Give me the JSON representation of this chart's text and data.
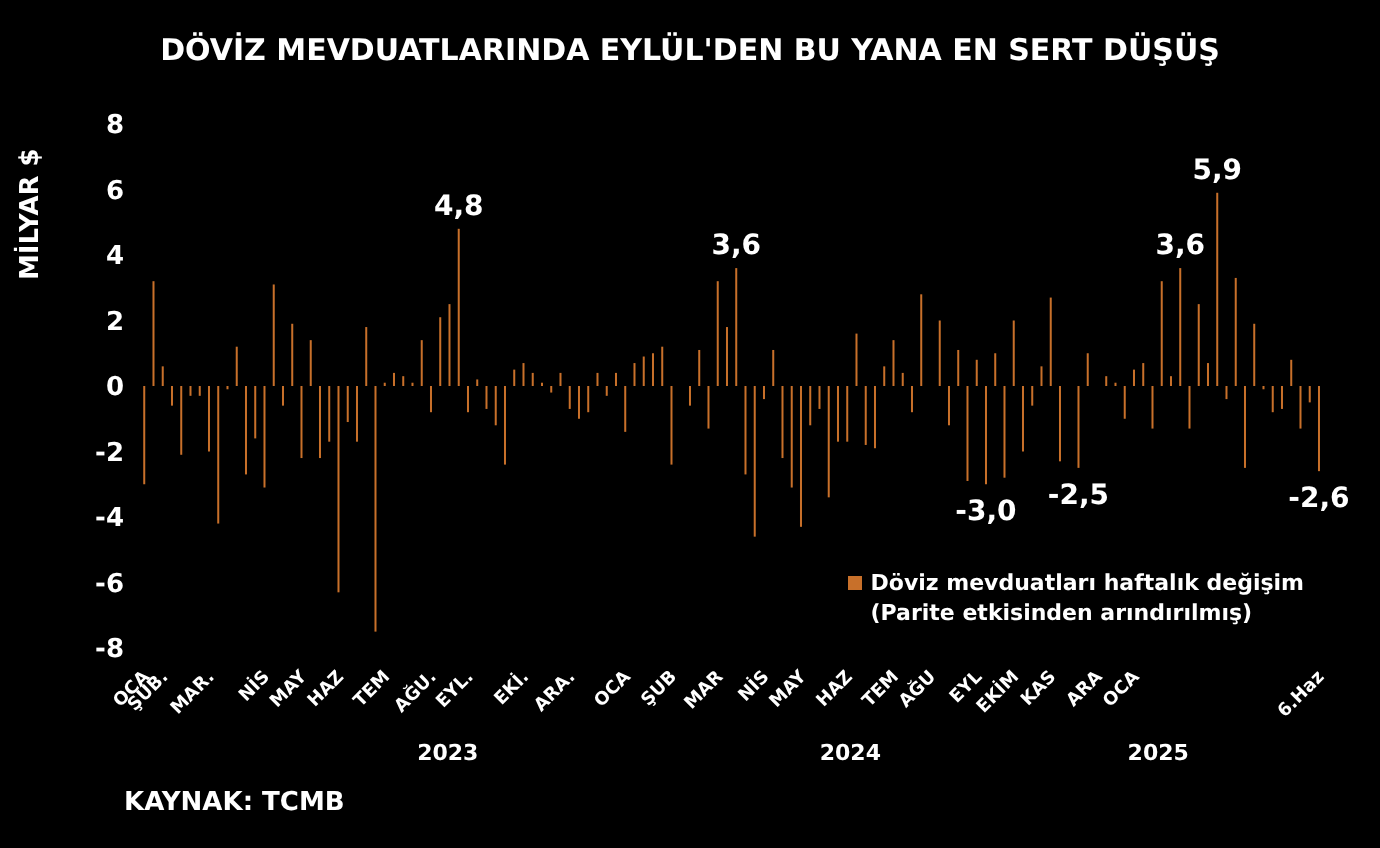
{
  "chart_data": {
    "type": "bar",
    "title": "DÖVİZ MEVDUATLARINDA EYLÜL'DEN BU YANA EN SERT DÜŞÜŞ",
    "ylabel": "MİLYAR $",
    "categories": [
      "OCA",
      null,
      "ŞUB.",
      null,
      null,
      null,
      null,
      "MAR.",
      null,
      null,
      null,
      null,
      null,
      "NİS",
      null,
      null,
      null,
      "MAY",
      null,
      null,
      null,
      "HAZ",
      null,
      null,
      null,
      null,
      "TEM",
      null,
      null,
      null,
      null,
      "AĞU.",
      null,
      null,
      null,
      "EYL.",
      null,
      null,
      null,
      null,
      null,
      "EKİ.",
      null,
      null,
      null,
      null,
      "ARA.",
      null,
      null,
      null,
      null,
      null,
      "OCA",
      null,
      null,
      null,
      null,
      "ŞUB",
      null,
      null,
      null,
      null,
      "MAR",
      null,
      null,
      null,
      null,
      "NİS",
      null,
      null,
      null,
      "MAY",
      null,
      null,
      null,
      null,
      "HAZ",
      null,
      null,
      null,
      null,
      "TEM",
      null,
      null,
      null,
      "AĞU",
      null,
      null,
      null,
      null,
      "EYL",
      null,
      null,
      null,
      "EKİM",
      null,
      null,
      null,
      "KAS",
      null,
      null,
      null,
      null,
      "ARA",
      null,
      null,
      null,
      "OCA",
      null,
      null,
      null,
      null,
      null,
      null,
      null,
      null,
      null,
      null,
      null,
      null,
      null,
      null,
      null,
      null,
      null,
      null,
      null,
      "6.Haz"
    ],
    "series": [
      {
        "name": "Döviz mevduatları haftalık değişim\n(Parite etkisinden arındırılmış)",
        "color": "#c8702a",
        "values": [
          -3.0,
          3.2,
          0.6,
          -0.6,
          -2.1,
          -0.3,
          -0.3,
          -2.0,
          -4.2,
          -0.1,
          1.2,
          -2.7,
          -1.6,
          -3.1,
          3.1,
          -0.6,
          1.9,
          -2.2,
          1.4,
          -2.2,
          -1.7,
          -6.3,
          -1.1,
          -1.7,
          1.8,
          -7.5,
          0.1,
          0.4,
          0.3,
          0.1,
          1.4,
          -0.8,
          2.1,
          2.5,
          4.8,
          -0.8,
          0.2,
          -0.7,
          -1.2,
          -2.4,
          0.5,
          0.7,
          0.4,
          0.1,
          -0.2,
          0.4,
          -0.7,
          -1.0,
          -0.8,
          0.4,
          -0.3,
          0.4,
          -1.4,
          0.7,
          0.9,
          1.0,
          1.2,
          -2.4,
          0.0,
          -0.6,
          1.1,
          -1.3,
          3.2,
          1.8,
          3.6,
          -2.7,
          -4.6,
          -0.4,
          1.1,
          -2.2,
          -3.1,
          -4.3,
          -1.2,
          -0.7,
          -3.4,
          -1.7,
          -1.7,
          1.6,
          -1.8,
          -1.9,
          0.6,
          1.4,
          0.4,
          -0.8,
          2.8,
          0.0,
          2.0,
          -1.2,
          1.1,
          -2.9,
          0.8,
          -3.0,
          1.0,
          -2.8,
          2.0,
          -2.0,
          -0.6,
          0.6,
          2.7,
          -2.3,
          0.0,
          -2.5,
          1.0,
          0.0,
          0.3,
          0.1,
          -1.0,
          0.5,
          0.7,
          -1.3,
          3.2,
          0.3,
          3.6,
          -1.3,
          2.5,
          0.7,
          5.9,
          -0.4,
          3.3,
          -2.5,
          1.9,
          -0.1,
          -0.8,
          -0.7,
          0.8,
          -1.3,
          -0.5,
          -2.6
        ],
        "value_labels": [
          null,
          null,
          null,
          null,
          null,
          null,
          null,
          null,
          null,
          null,
          null,
          null,
          null,
          null,
          null,
          null,
          null,
          null,
          null,
          null,
          null,
          null,
          null,
          null,
          null,
          null,
          null,
          null,
          null,
          null,
          null,
          null,
          null,
          null,
          "4,8",
          null,
          null,
          null,
          null,
          null,
          null,
          null,
          null,
          null,
          null,
          null,
          null,
          null,
          null,
          null,
          null,
          null,
          null,
          null,
          null,
          null,
          null,
          null,
          null,
          null,
          null,
          null,
          null,
          null,
          "3,6",
          null,
          null,
          null,
          null,
          null,
          null,
          null,
          null,
          null,
          null,
          null,
          null,
          null,
          null,
          null,
          null,
          null,
          null,
          null,
          null,
          null,
          null,
          null,
          null,
          null,
          null,
          "-3,0",
          null,
          null,
          null,
          null,
          null,
          null,
          null,
          null,
          null,
          "-2,5",
          null,
          null,
          null,
          null,
          null,
          null,
          null,
          null,
          null,
          null,
          "3,6",
          null,
          null,
          null,
          "5,9",
          null,
          null,
          null,
          null,
          null,
          null,
          null,
          null,
          null,
          null,
          "-2,6"
        ]
      }
    ],
    "ylim": [
      -8,
      8
    ],
    "yticks": [
      -8,
      -6,
      -4,
      -2,
      0,
      2,
      4,
      6,
      8
    ],
    "grid": false,
    "legend": "bottom right",
    "annotations": [
      "2023",
      "2024",
      "2025",
      "KAYNAK: TCMB"
    ]
  }
}
